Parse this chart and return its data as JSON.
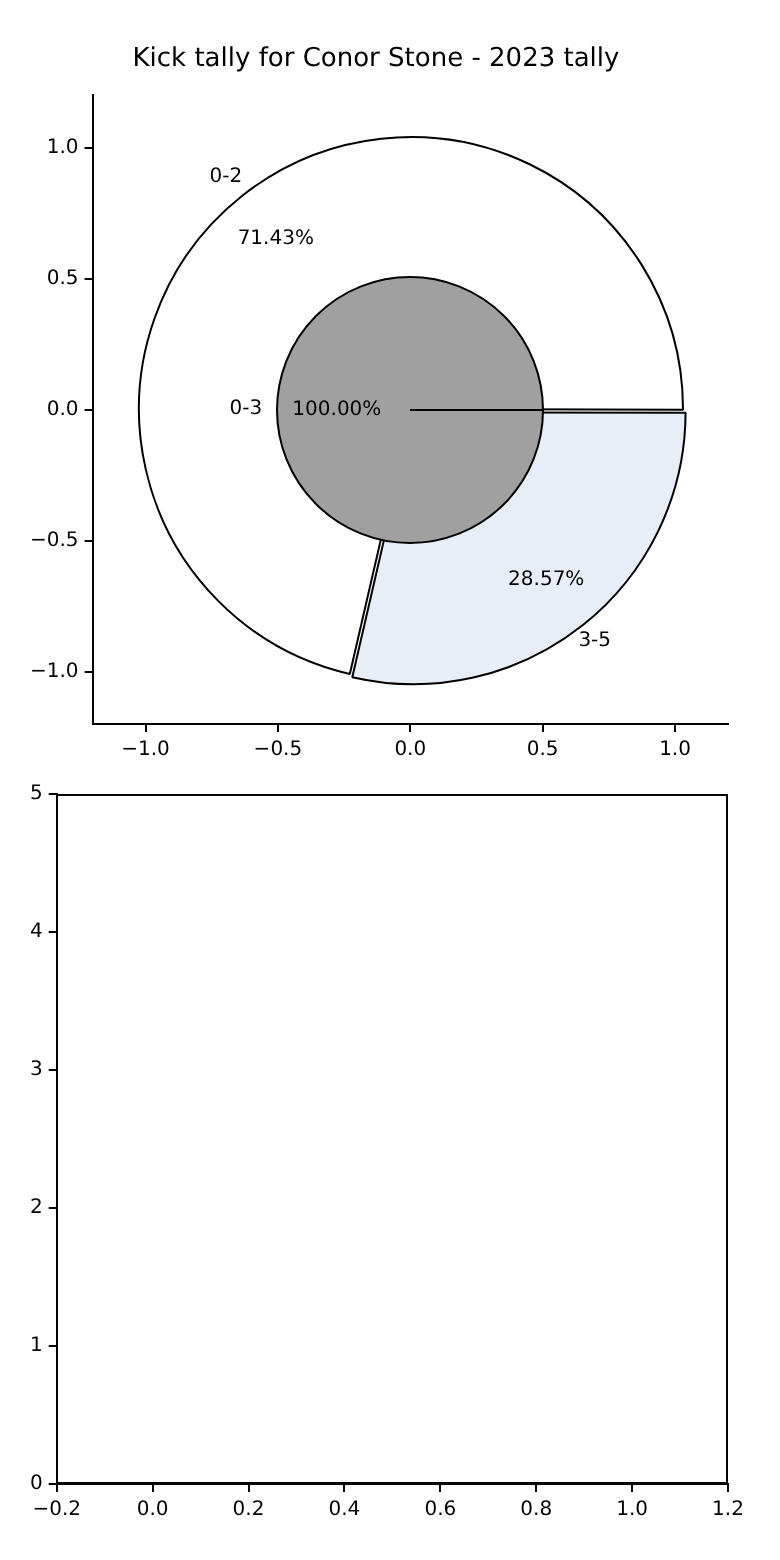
{
  "chart_data": [
    {
      "type": "scatter",
      "title": "Kick tally for Conor Stone - 2023 tally",
      "xlim": [
        -1.2,
        1.2
      ],
      "ylim": [
        -1.2,
        1.2
      ],
      "xticks": [
        {
          "value": -1,
          "label": "−1.0"
        },
        {
          "value": -0.5,
          "label": "−0.5"
        },
        {
          "value": 0,
          "label": "0.0"
        },
        {
          "value": 0.5,
          "label": "0.5"
        },
        {
          "value": 1,
          "label": "1.0"
        }
      ],
      "yticks": [
        {
          "value": -1,
          "label": "−1.0"
        },
        {
          "value": -0.5,
          "label": "−0.5"
        },
        {
          "value": 0,
          "label": "0.0"
        },
        {
          "value": 0.5,
          "label": "0.5"
        },
        {
          "value": 1,
          "label": "1.0"
        }
      ]
    },
    {
      "type": "pie",
      "categories": [
        "0-2",
        "3-5"
      ],
      "values": [
        71.43,
        28.57
      ],
      "colors": [
        "#ffffff",
        "#e8eef8"
      ],
      "value_labels": [
        "71.43%",
        "28.57%"
      ]
    },
    {
      "type": "pie",
      "categories": [
        "0-3"
      ],
      "values": [
        100
      ],
      "colors": [
        "#a0a0a0"
      ],
      "value_labels": [
        "100.00%"
      ]
    },
    {
      "type": "scatter",
      "xlim": [
        -0.2,
        1.2
      ],
      "ylim": [
        0,
        5
      ],
      "xticks": [
        {
          "value": -0.2,
          "label": "−0.2"
        },
        {
          "value": 0,
          "label": "0.0"
        },
        {
          "value": 0.2,
          "label": "0.2"
        },
        {
          "value": 0.4,
          "label": "0.4"
        },
        {
          "value": 0.6,
          "label": "0.6"
        },
        {
          "value": 0.8,
          "label": "0.8"
        },
        {
          "value": 1,
          "label": "1.0"
        },
        {
          "value": 1.2,
          "label": "1.2"
        }
      ],
      "yticks": [
        0,
        1,
        2,
        3,
        4,
        5
      ]
    }
  ]
}
